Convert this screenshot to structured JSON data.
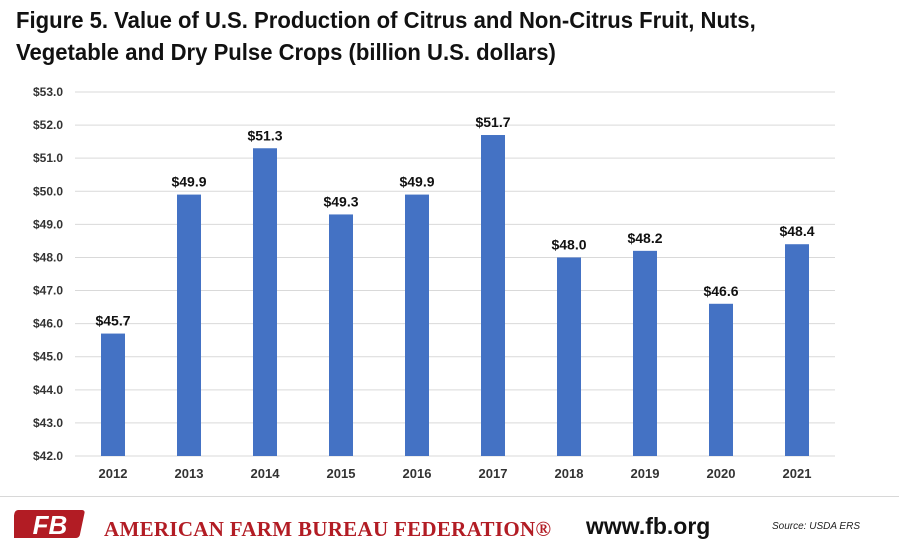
{
  "chart_data": {
    "type": "bar",
    "title_lines": [
      "Figure 5. Value of U.S. Production of Citrus and Non-Citrus Fruit, Nuts,",
      "Vegetable and Dry Pulse Crops (billion U.S. dollars)"
    ],
    "categories": [
      "2012",
      "2013",
      "2014",
      "2015",
      "2016",
      "2017",
      "2018",
      "2019",
      "2020",
      "2021"
    ],
    "values": [
      45.7,
      49.9,
      51.3,
      49.3,
      49.9,
      51.7,
      48.0,
      48.2,
      46.6,
      48.4
    ],
    "data_labels": [
      "$45.7",
      "$49.9",
      "$51.3",
      "$49.3",
      "$49.9",
      "$51.7",
      "$48.0",
      "$48.2",
      "$46.6",
      "$48.4"
    ],
    "yticks": [
      42,
      43,
      44,
      45,
      46,
      47,
      48,
      49,
      50,
      51,
      52,
      53
    ],
    "ytick_labels": [
      "$42.0",
      "$43.0",
      "$44.0",
      "$45.0",
      "$46.0",
      "$47.0",
      "$48.0",
      "$49.0",
      "$50.0",
      "$51.0",
      "$52.0",
      "$53.0"
    ],
    "ylim": [
      42,
      53
    ],
    "xlabel": "",
    "ylabel": "",
    "grid": true,
    "legend": "none",
    "bar_color": "#4472c4",
    "grid_color": "#d9d9d9"
  },
  "footer": {
    "logo_text": "FB",
    "organization": "AMERICAN FARM BUREAU FEDERATION®",
    "website": "www.fb.org",
    "source": "Source: USDA ERS",
    "brand_color": "#b21c24"
  }
}
